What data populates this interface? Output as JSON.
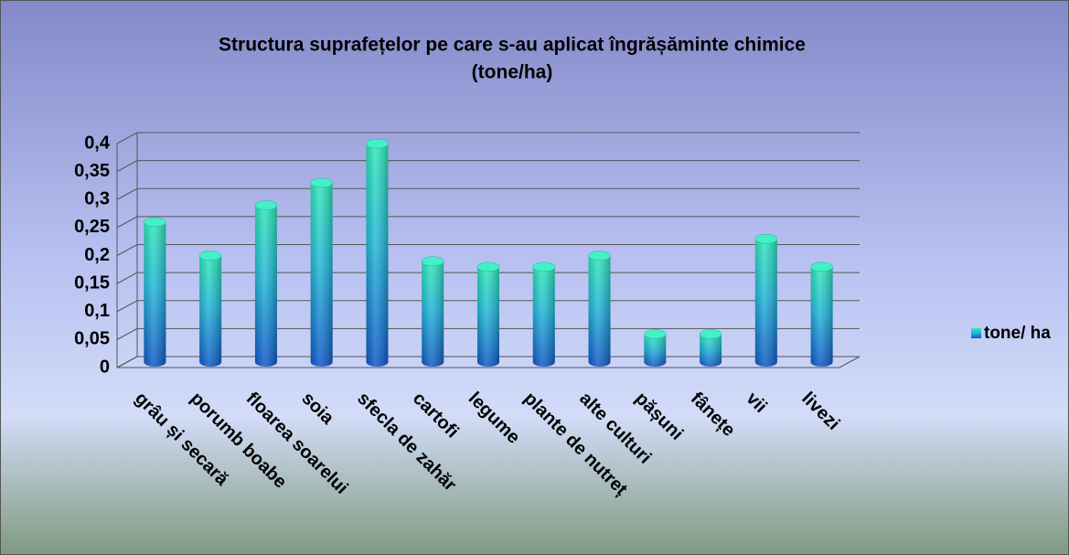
{
  "chart_data": {
    "type": "bar",
    "title": [
      "Structura suprafețelor pe care s-au aplicat îngrășăminte chimice",
      "(tone/ha)"
    ],
    "categories": [
      "grâu și secară",
      "porumb boabe",
      "floarea soarelui",
      "soia",
      "sfecla de zahăr",
      "cartofi",
      "legume",
      "plante de nutreț",
      "alte culturi",
      "pășuni",
      "fânețe",
      "vii",
      "livezi"
    ],
    "series": [
      {
        "name": "tone/ ha",
        "color": "#1fb8c8",
        "values": [
          0.25,
          0.19,
          0.28,
          0.32,
          0.39,
          0.18,
          0.17,
          0.17,
          0.19,
          0.05,
          0.05,
          0.22,
          0.17
        ]
      }
    ],
    "ylim": [
      0,
      0.4
    ],
    "yticks": [
      0,
      {
        "value": 0.05,
        "label": "0,05"
      },
      {
        "value": 0.1,
        "label": "0,1"
      },
      {
        "value": 0.15,
        "label": "0,15"
      },
      {
        "value": 0.2,
        "label": "0,2"
      },
      {
        "value": 0.25,
        "label": "0,25"
      },
      {
        "value": 0.3,
        "label": "0,3"
      },
      {
        "value": 0.35,
        "label": "0,35"
      },
      {
        "value": 0.4,
        "label": "0,4"
      }
    ],
    "grid": true,
    "legend": "right"
  }
}
